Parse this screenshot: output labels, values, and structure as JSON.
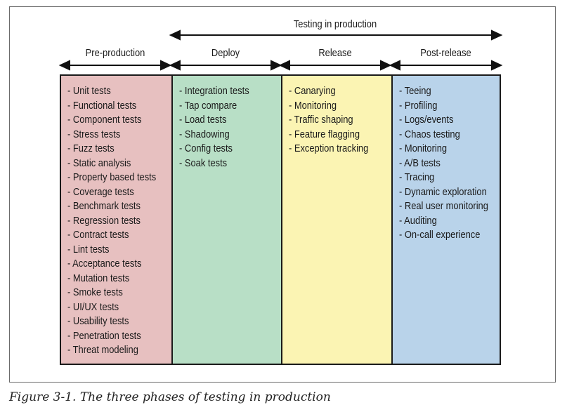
{
  "top_span": {
    "label": "Testing in production"
  },
  "phases": [
    {
      "label": "Pre-production",
      "color": "#e7c0c0",
      "items": [
        "- Unit tests",
        "- Functional tests",
        "- Component tests",
        "- Stress tests",
        "- Fuzz tests",
        "- Static analysis",
        "- Property based tests",
        "- Coverage tests",
        "- Benchmark tests",
        "- Regression tests",
        "- Contract tests",
        "- Lint tests",
        "- Acceptance tests",
        "- Mutation tests",
        "- Smoke tests",
        "- UI/UX tests",
        "- Usability tests",
        "- Penetration tests",
        "- Threat modeling"
      ]
    },
    {
      "label": "Deploy",
      "color": "#b8dfc6",
      "items": [
        "- Integration tests",
        "- Tap compare",
        "- Load tests",
        "- Shadowing",
        "- Config tests",
        "- Soak tests"
      ]
    },
    {
      "label": "Release",
      "color": "#fbf4b3",
      "items": [
        "- Canarying",
        "- Monitoring",
        "- Traffic shaping",
        "- Feature flagging",
        "- Exception tracking"
      ]
    },
    {
      "label": "Post-release",
      "color": "#b9d3ea",
      "items": [
        "- Teeing",
        "- Profiling",
        "- Logs/events",
        "- Chaos testing",
        "- Monitoring",
        "- A/B tests",
        "- Tracing",
        "- Dynamic exploration",
        "- Real user monitoring",
        "- Auditing",
        "- On-call experience"
      ]
    }
  ],
  "caption": "Figure 3-1. The three phases of testing in production"
}
